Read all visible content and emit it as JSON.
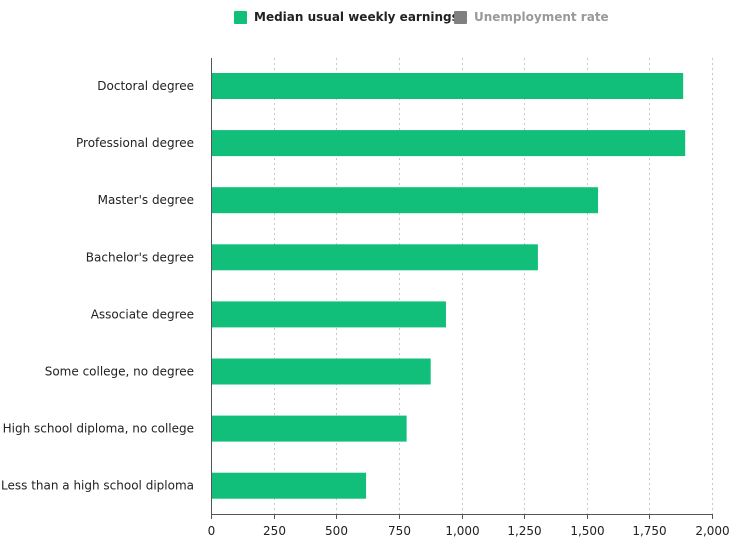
{
  "legend": {
    "items": [
      {
        "label": "Median usual weekly earnings",
        "color": "#12bf7a",
        "active": true
      },
      {
        "label": "Unemployment rate",
        "color": "#808080",
        "active": false
      }
    ]
  },
  "chart_data": {
    "type": "bar",
    "orientation": "horizontal",
    "categories": [
      "Doctoral degree",
      "Professional degree",
      "Master's degree",
      "Bachelor's degree",
      "Associate degree",
      "Some college, no degree",
      "High school diploma, no college",
      "Less than a high school diploma"
    ],
    "series": [
      {
        "name": "Median usual weekly earnings",
        "values": [
          1885,
          1893,
          1545,
          1305,
          938,
          877,
          781,
          619
        ]
      }
    ],
    "xlim": [
      0,
      2000
    ],
    "xticks": [
      0,
      250,
      500,
      750,
      1000,
      1250,
      1500,
      1750,
      2000
    ],
    "xtick_labels": [
      "0",
      "250",
      "500",
      "750",
      "1,000",
      "1,250",
      "1,500",
      "1,750",
      "2,000"
    ],
    "grid": true,
    "legend_position": "top",
    "bar_color": "#12bf7a"
  }
}
